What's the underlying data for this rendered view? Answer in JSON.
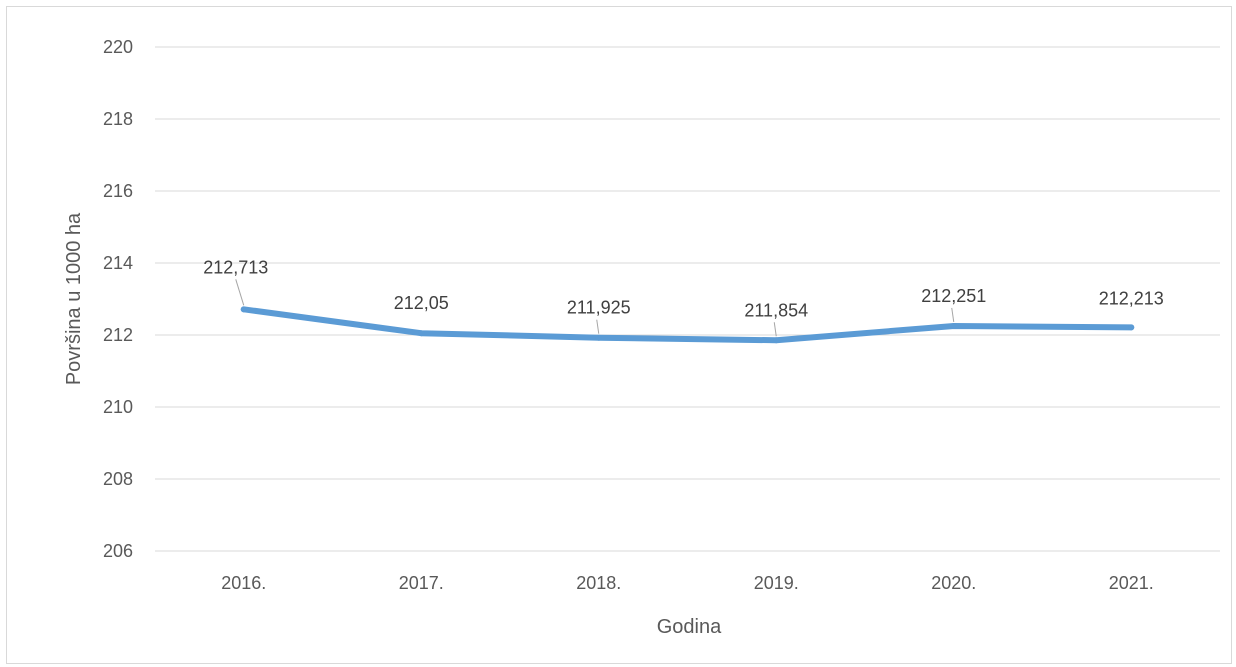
{
  "chart_data": {
    "type": "line",
    "categories": [
      "2016.",
      "2017.",
      "2018.",
      "2019.",
      "2020.",
      "2021."
    ],
    "values": [
      212.713,
      212.05,
      211.925,
      211.854,
      212.251,
      212.213
    ],
    "data_labels": [
      "212,713",
      "212,05",
      "211,925",
      "211,854",
      "212,251",
      "212,213"
    ],
    "xlabel": "Godina",
    "ylabel": "Površina u 1000 ha",
    "ylim": [
      206,
      220
    ],
    "yticks": [
      206,
      208,
      210,
      212,
      214,
      216,
      218,
      220
    ],
    "grid": true,
    "line_color": "#5b9bd5",
    "grid_color": "#d9d9d9"
  }
}
